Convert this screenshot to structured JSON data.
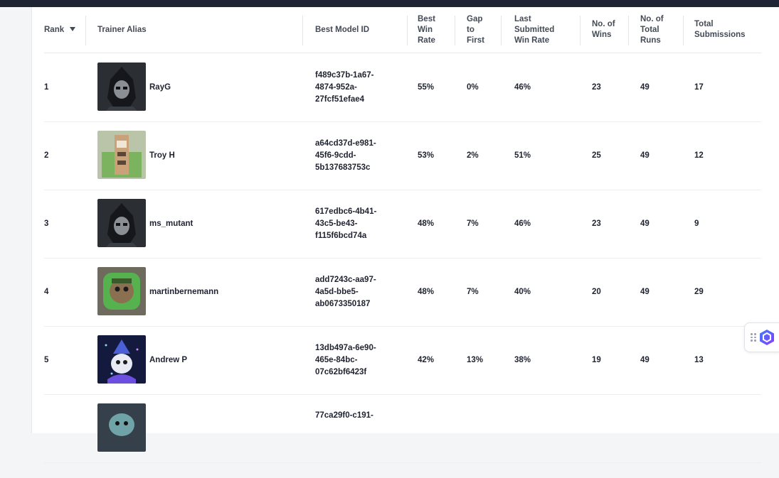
{
  "table": {
    "headers": {
      "rank": "Rank",
      "trainer_alias": "Trainer Alias",
      "best_model_id": "Best Model ID",
      "best_win_rate": "Best\nWin\nRate",
      "gap_to_first": "Gap\nto\nFirst",
      "last_submitted_win_rate": "Last\nSubmitted\nWin Rate",
      "no_of_wins": "No. of\nWins",
      "no_of_total_runs": "No. of\nTotal\nRuns",
      "total_submissions": "Total\nSubmissions"
    },
    "sort_icon": "sort-descending-icon",
    "rows": [
      {
        "rank": "1",
        "alias": "RayG",
        "model_id": "f489c37b-1a67-\n4874-952a-\n27fcf51efae4",
        "best_win_rate": "55%",
        "gap": "0%",
        "last_win_rate": "46%",
        "wins": "23",
        "runs": "49",
        "submissions": "17",
        "avatar": "hooded-rogue-avatar"
      },
      {
        "rank": "2",
        "alias": "Troy H",
        "model_id": "a64cd37d-e981-\n45f6-9cdd-\n5b137683753c",
        "best_win_rate": "53%",
        "gap": "2%",
        "last_win_rate": "51%",
        "wins": "25",
        "runs": "49",
        "submissions": "12",
        "avatar": "llama-tower-avatar"
      },
      {
        "rank": "3",
        "alias": "ms_mutant",
        "model_id": "617edbc6-4b41-\n43c5-be43-\nf115f6bcd74a",
        "best_win_rate": "48%",
        "gap": "7%",
        "last_win_rate": "46%",
        "wins": "23",
        "runs": "49",
        "submissions": "9",
        "avatar": "hooded-rogue-avatar"
      },
      {
        "rank": "4",
        "alias": "martinbernemann",
        "model_id": "add7243c-aa97-\n4a5d-bbe5-\nab0673350187",
        "best_win_rate": "48%",
        "gap": "7%",
        "last_win_rate": "40%",
        "wins": "20",
        "runs": "49",
        "submissions": "29",
        "avatar": "green-goblin-avatar"
      },
      {
        "rank": "5",
        "alias": "Andrew P",
        "model_id": "13db497a-6e90-\n465e-84bc-\n07c62bf6423f",
        "best_win_rate": "42%",
        "gap": "13%",
        "last_win_rate": "38%",
        "wins": "19",
        "runs": "49",
        "submissions": "13",
        "avatar": "wizard-llama-avatar"
      },
      {
        "rank": "",
        "alias": "",
        "model_id": "77ca29f0-c191-",
        "best_win_rate": "",
        "gap": "",
        "last_win_rate": "",
        "wins": "",
        "runs": "",
        "submissions": "",
        "avatar": "armored-llama-avatar"
      }
    ]
  },
  "widget": {
    "grip_icon": "drag-grip-icon",
    "logo_icon": "hexagon-logo-icon"
  },
  "colors": {
    "topbar": "#1e2433",
    "accent": "#6a4cff"
  }
}
